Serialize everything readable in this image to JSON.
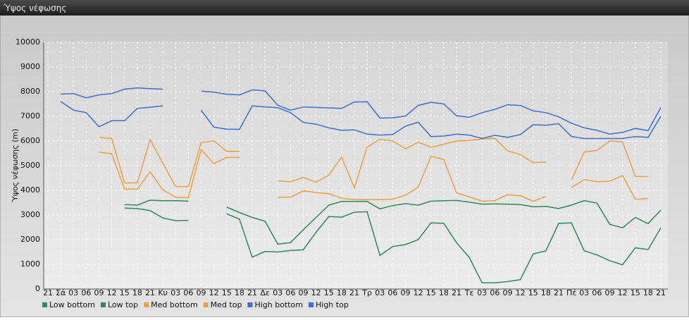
{
  "chart_data": {
    "type": "line",
    "title": "Ύψος νέφωσης",
    "ylabel": "Ύψος νέφωσης (m)",
    "categories": [
      "21",
      "Σά",
      "03",
      "06",
      "09",
      "12",
      "15",
      "18",
      "21",
      "Κυ",
      "03",
      "06",
      "09",
      "12",
      "15",
      "18",
      "21",
      "Δε",
      "03",
      "06",
      "09",
      "12",
      "15",
      "18",
      "21",
      "Τρ",
      "03",
      "06",
      "09",
      "12",
      "15",
      "18",
      "21",
      "Τε",
      "03",
      "06",
      "09",
      "12",
      "15",
      "18",
      "21",
      "Πέ",
      "03",
      "06",
      "09",
      "12",
      "15",
      "18",
      "21"
    ],
    "ylim": [
      0,
      10000
    ],
    "yticks": [
      0,
      1000,
      2000,
      3000,
      4000,
      5000,
      6000,
      7000,
      8000,
      9000,
      10000
    ],
    "grid": true,
    "series": [
      {
        "name": "Low bottom",
        "color": "#2e8b5a",
        "values": [
          null,
          null,
          null,
          null,
          null,
          null,
          3280,
          3260,
          3180,
          2880,
          2770,
          2780,
          null,
          null,
          3050,
          2830,
          1290,
          1520,
          1500,
          1560,
          1590,
          2300,
          2940,
          2910,
          3110,
          3130,
          1360,
          1720,
          1800,
          2000,
          2680,
          2660,
          1880,
          1280,
          250,
          250,
          300,
          380,
          1420,
          1550,
          2660,
          2680,
          1550,
          1380,
          1150,
          980,
          1670,
          1600,
          2480
        ]
      },
      {
        "name": "Low top",
        "color": "#2e8b5a",
        "values": [
          null,
          null,
          null,
          null,
          null,
          null,
          3420,
          3400,
          3600,
          3580,
          3580,
          3560,
          null,
          null,
          3320,
          3100,
          2900,
          2750,
          1820,
          1880,
          2400,
          2900,
          3400,
          3550,
          3550,
          3550,
          3250,
          3380,
          3460,
          3400,
          3560,
          3580,
          3590,
          3520,
          3440,
          3450,
          3440,
          3420,
          3330,
          3350,
          3260,
          3400,
          3580,
          3480,
          2620,
          2480,
          2900,
          2650,
          3200
        ]
      },
      {
        "name": "Med bottom",
        "color": "#f0a040",
        "values": [
          null,
          null,
          null,
          null,
          5550,
          5480,
          4050,
          4050,
          4750,
          4020,
          3720,
          3700,
          5650,
          5080,
          5340,
          5330,
          null,
          null,
          3720,
          3720,
          3980,
          3910,
          3860,
          3680,
          3620,
          3620,
          3620,
          3640,
          3800,
          4130,
          5380,
          5250,
          3900,
          3730,
          3560,
          3580,
          3820,
          3780,
          3560,
          3750,
          null,
          4120,
          4430,
          4350,
          4370,
          4600,
          3640,
          3660,
          null
        ]
      },
      {
        "name": "Med top",
        "color": "#f0a040",
        "values": [
          null,
          null,
          null,
          null,
          6150,
          6100,
          4300,
          4300,
          6060,
          5100,
          4150,
          4150,
          5950,
          6000,
          5580,
          5580,
          null,
          null,
          4380,
          4350,
          4520,
          4330,
          4620,
          5350,
          4100,
          5750,
          6070,
          6000,
          5680,
          5950,
          5750,
          5870,
          6000,
          6020,
          6080,
          6110,
          5600,
          5450,
          5120,
          5150,
          null,
          4420,
          5550,
          5620,
          6000,
          5970,
          4560,
          4560,
          null
        ]
      },
      {
        "name": "High bottom",
        "color": "#3d6fd6",
        "values": [
          null,
          7600,
          7250,
          7150,
          6580,
          6820,
          6820,
          7320,
          7370,
          7420,
          null,
          null,
          7250,
          6560,
          6480,
          6470,
          7420,
          7380,
          7350,
          7150,
          6750,
          6680,
          6530,
          6430,
          6450,
          6280,
          6240,
          6260,
          6600,
          6760,
          6180,
          6200,
          6280,
          6240,
          6100,
          6230,
          6150,
          6260,
          6660,
          6640,
          6700,
          6180,
          6100,
          6100,
          6100,
          6100,
          6180,
          6150,
          7000
        ]
      },
      {
        "name": "High top",
        "color": "#3d6fd6",
        "values": [
          null,
          7900,
          7920,
          7750,
          7870,
          7920,
          8100,
          8150,
          8120,
          8100,
          null,
          null,
          8020,
          7980,
          7890,
          7870,
          8070,
          8030,
          7450,
          7250,
          7380,
          7360,
          7340,
          7320,
          7580,
          7590,
          6930,
          6940,
          7010,
          7440,
          7570,
          7500,
          7020,
          6960,
          7150,
          7280,
          7470,
          7440,
          7220,
          7150,
          6980,
          6720,
          6530,
          6430,
          6280,
          6350,
          6510,
          6420,
          7350
        ]
      }
    ]
  }
}
